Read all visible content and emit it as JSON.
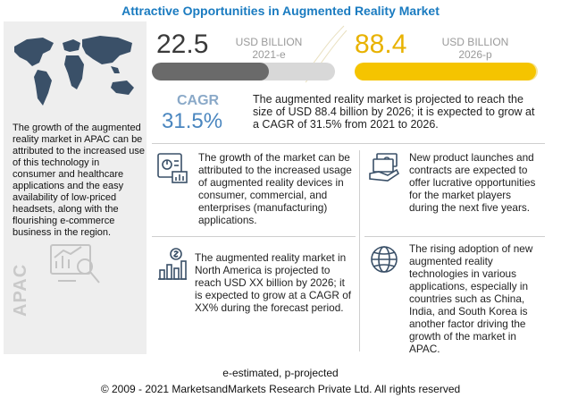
{
  "title": "Attractive Opportunities in Augmented Reality Market",
  "market": {
    "value_2021": "22.5",
    "unit_2021": "USD BILLION",
    "year_2021": "2021-e",
    "value_2026": "88.4",
    "unit_2026": "USD BILLION",
    "year_2026": "2026-p",
    "bar_2021_fill": 0.64,
    "bar_2026_fill": 0.99
  },
  "cagr": {
    "label": "CAGR",
    "value": "31.5%",
    "text": "The augmented reality market is projected to reach the size of USD 88.4 billion  by 2026; it is expected to grow at a CAGR of 31.5% from 2021 to 2026."
  },
  "left": {
    "text": "The growth of the augmented reality market in APAC can be attributed to the increased use of this technology in consumer and healthcare applications and the easy availability of low-priced headsets, along with the flourishing e-commerce business in the region.",
    "region_label": "APAC"
  },
  "blocks": {
    "growth": "The growth of the market can be attributed to the increased usage of augmented reality devices in consumer, commercial, and enterprises (manufacturing) applications.",
    "product": "New product launches and contracts are expected to offer lucrative opportunities for the market players during the next five years.",
    "north_america": "The augmented reality market in North America is projected to reach USD XX billion by 2026; it is expected to grow at a CAGR of XX% during the forecast period.",
    "adoption": "The rising adoption of new augmented reality technologies in various applications, especially in countries such as China, India, and South Korea is another factor driving the growth of the market in APAC."
  },
  "footer": {
    "note": "e-estimated, p-projected",
    "copyright": "© 2009 - 2021  MarketsandMarkets Research Private Ltd. All rights reserved"
  },
  "colors": {
    "title": "#1a7bc0",
    "accent_yellow": "#f5c400",
    "cagr_blue": "#4a86bf"
  }
}
